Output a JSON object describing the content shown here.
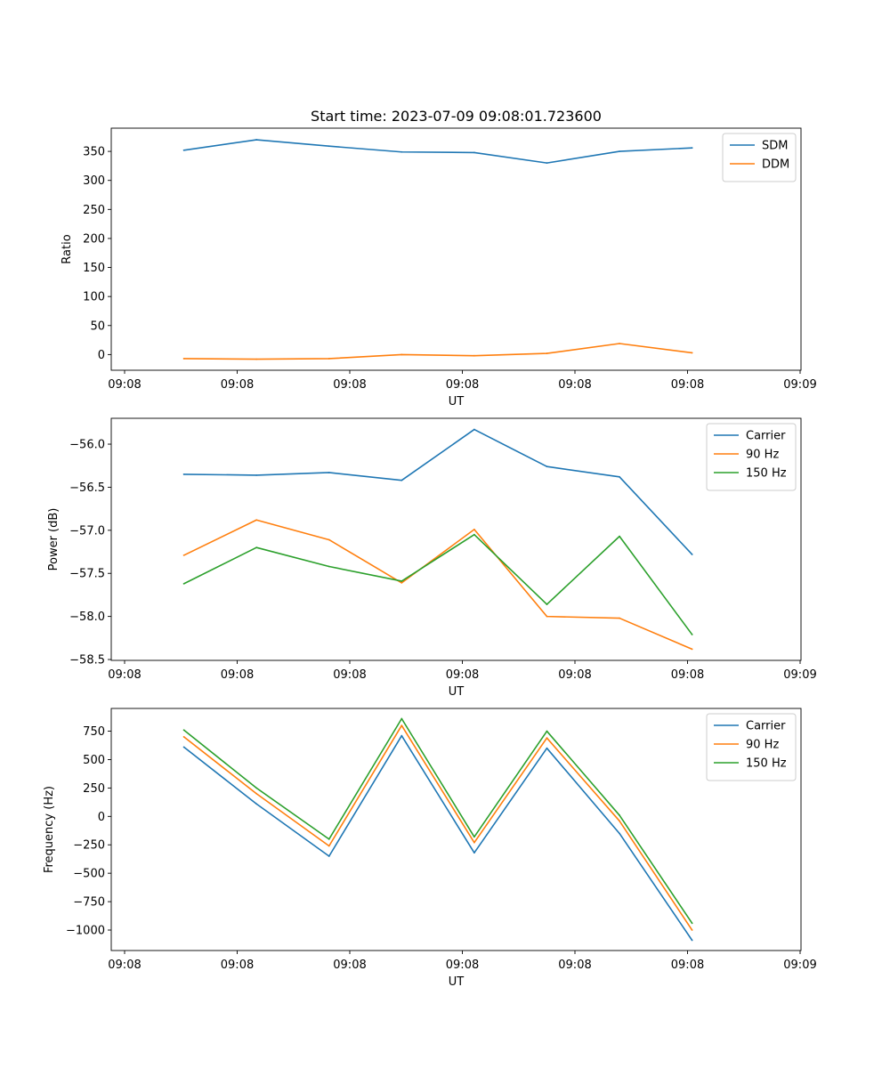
{
  "chart_data": [
    {
      "type": "line",
      "title": "Start time: 2023-07-09 09:08:01.723600",
      "xlabel": "UT",
      "ylabel": "Ratio",
      "x_ticks": [
        "09:08",
        "09:08",
        "09:08",
        "09:08",
        "09:08",
        "09:08",
        "09:09"
      ],
      "xlim": [
        0,
        9.5
      ],
      "ylim": [
        -27,
        390
      ],
      "y_ticks": [
        0,
        50,
        100,
        150,
        200,
        250,
        300,
        350
      ],
      "y_tick_labels": [
        "0",
        "50",
        "100",
        "150",
        "200",
        "250",
        "300",
        "350"
      ],
      "legend_position": "top-right",
      "x": [
        1,
        2,
        3,
        4,
        5,
        6,
        7,
        8
      ],
      "series": [
        {
          "name": "SDM",
          "color": "#1f77b4",
          "values": [
            352,
            370,
            359,
            349,
            348,
            330,
            350,
            356
          ]
        },
        {
          "name": "DDM",
          "color": "#ff7f0e",
          "values": [
            -7,
            -8,
            -7,
            0,
            -2,
            2,
            19,
            3
          ]
        }
      ]
    },
    {
      "type": "line",
      "title": "",
      "xlabel": "UT",
      "ylabel": "Power (dB)",
      "x_ticks": [
        "09:08",
        "09:08",
        "09:08",
        "09:08",
        "09:08",
        "09:08",
        "09:09"
      ],
      "xlim": [
        0,
        9.5
      ],
      "ylim": [
        -58.51,
        -55.7
      ],
      "y_ticks": [
        -58.5,
        -58.0,
        -57.5,
        -57.0,
        -56.5,
        -56.0
      ],
      "y_tick_labels": [
        "−58.5",
        "−58.0",
        "−57.5",
        "−57.0",
        "−56.5",
        "−56.0"
      ],
      "legend_position": "top-right",
      "x": [
        1,
        2,
        3,
        4,
        5,
        6,
        7,
        8
      ],
      "series": [
        {
          "name": "Carrier",
          "color": "#1f77b4",
          "values": [
            -56.35,
            -56.36,
            -56.33,
            -56.42,
            -55.83,
            -56.26,
            -56.38,
            -57.28
          ]
        },
        {
          "name": "90 Hz",
          "color": "#ff7f0e",
          "values": [
            -57.29,
            -56.88,
            -57.11,
            -57.61,
            -56.99,
            -58.0,
            -58.02,
            -58.38
          ]
        },
        {
          "name": "150 Hz",
          "color": "#2ca02c",
          "values": [
            -57.62,
            -57.2,
            -57.42,
            -57.59,
            -57.05,
            -57.86,
            -57.07,
            -58.21
          ]
        }
      ]
    },
    {
      "type": "line",
      "title": "",
      "xlabel": "UT",
      "ylabel": "Frequency (Hz)",
      "x_ticks": [
        "09:08",
        "09:08",
        "09:08",
        "09:08",
        "09:08",
        "09:08",
        "09:09"
      ],
      "xlim": [
        0,
        9.5
      ],
      "ylim": [
        -1180,
        950
      ],
      "y_ticks": [
        -1000,
        -750,
        -500,
        -250,
        0,
        250,
        500,
        750
      ],
      "y_tick_labels": [
        "−1000",
        "−750",
        "−500",
        "−250",
        "0",
        "250",
        "500",
        "750"
      ],
      "legend_position": "top-right",
      "x": [
        1,
        2,
        3,
        4,
        5,
        6,
        7,
        8
      ],
      "series": [
        {
          "name": "Carrier",
          "color": "#1f77b4",
          "values": [
            610,
            110,
            -350,
            710,
            -320,
            600,
            -150,
            -1090
          ]
        },
        {
          "name": "90 Hz",
          "color": "#ff7f0e",
          "values": [
            700,
            200,
            -260,
            800,
            -230,
            690,
            -40,
            -1000
          ]
        },
        {
          "name": "150 Hz",
          "color": "#2ca02c",
          "values": [
            760,
            250,
            -200,
            860,
            -180,
            750,
            10,
            -940
          ]
        }
      ]
    }
  ]
}
